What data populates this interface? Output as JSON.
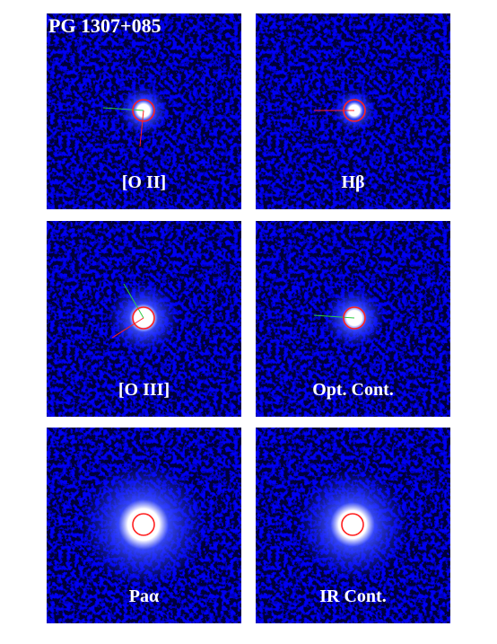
{
  "title": "PG 1307+085",
  "panels": [
    {
      "label": "[O II]"
    },
    {
      "label": "Hβ"
    },
    {
      "label": "[O III]"
    },
    {
      "label": "Opt.  Cont."
    },
    {
      "label": "Paα"
    },
    {
      "label": "IR Cont."
    }
  ]
}
